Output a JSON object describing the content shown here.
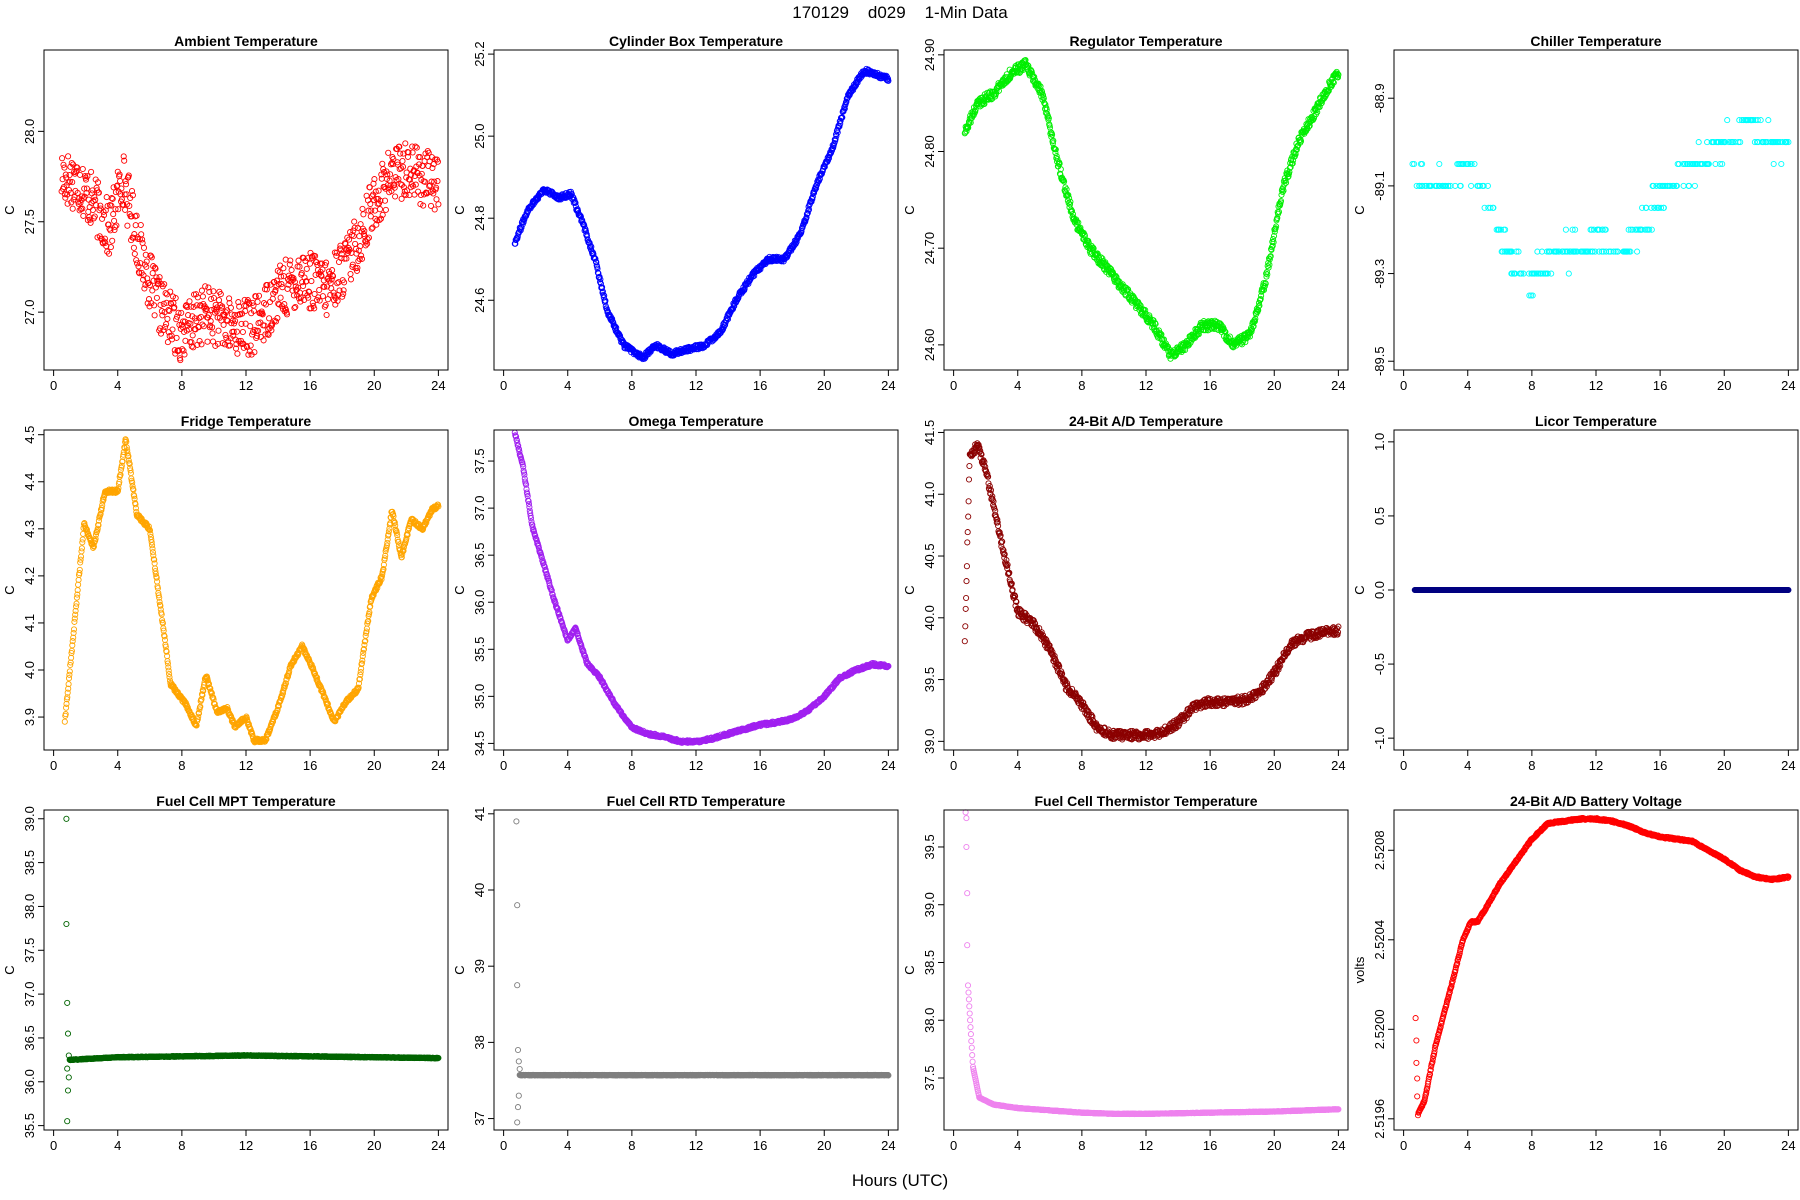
{
  "figure": {
    "title": "170129    d029    1-Min Data",
    "xlabel": "Hours (UTC)",
    "xticks": [
      0,
      4,
      8,
      12,
      16,
      20,
      24
    ]
  },
  "chart_data": [
    {
      "type": "scatter",
      "title": "Ambient Temperature",
      "ylabel": "C",
      "color": "#ff0000",
      "yticks": [
        "27.0",
        "27.5",
        "28.0"
      ],
      "ylim": [
        26.68,
        28.45
      ],
      "noise": 0.16,
      "trend": [
        [
          0.5,
          27.75
        ],
        [
          1.5,
          27.72
        ],
        [
          2.5,
          27.6
        ],
        [
          3.5,
          27.45
        ],
        [
          4.3,
          27.75
        ],
        [
          5.5,
          27.3
        ],
        [
          6.5,
          27.05
        ],
        [
          8,
          26.88
        ],
        [
          9.5,
          27.0
        ],
        [
          11,
          26.92
        ],
        [
          12.5,
          26.92
        ],
        [
          14,
          27.1
        ],
        [
          15.5,
          27.2
        ],
        [
          17,
          27.12
        ],
        [
          18.5,
          27.3
        ],
        [
          20,
          27.6
        ],
        [
          21,
          27.75
        ],
        [
          22,
          27.8
        ],
        [
          23,
          27.75
        ],
        [
          24,
          27.7
        ]
      ]
    },
    {
      "type": "scatter",
      "title": "Cylinder Box Temperature",
      "ylabel": "C",
      "color": "#0000ff",
      "yticks": [
        "24.6",
        "24.8",
        "25.0",
        "25.2"
      ],
      "ylim": [
        24.43,
        25.21
      ],
      "noise": 0.006,
      "trend": [
        [
          0.7,
          24.74
        ],
        [
          1.5,
          24.82
        ],
        [
          2.5,
          24.87
        ],
        [
          3.5,
          24.85
        ],
        [
          4.2,
          24.86
        ],
        [
          5,
          24.78
        ],
        [
          5.7,
          24.7
        ],
        [
          6.5,
          24.57
        ],
        [
          7.5,
          24.49
        ],
        [
          8.7,
          24.46
        ],
        [
          9.5,
          24.49
        ],
        [
          10.5,
          24.47
        ],
        [
          11.5,
          24.48
        ],
        [
          12.5,
          24.49
        ],
        [
          13.5,
          24.52
        ],
        [
          14.5,
          24.6
        ],
        [
          15.5,
          24.66
        ],
        [
          16.5,
          24.7
        ],
        [
          17.5,
          24.7
        ],
        [
          18.5,
          24.76
        ],
        [
          19.5,
          24.88
        ],
        [
          20.5,
          24.97
        ],
        [
          21.5,
          25.1
        ],
        [
          22.5,
          25.16
        ],
        [
          23.2,
          25.15
        ],
        [
          24,
          25.14
        ]
      ]
    },
    {
      "type": "scatter",
      "title": "Regulator Temperature",
      "ylabel": "C",
      "color": "#00ee00",
      "yticks": [
        "24.60",
        "24.70",
        "24.80",
        "24.90"
      ],
      "ylim": [
        24.574,
        24.905
      ],
      "noise": 0.005,
      "trend": [
        [
          0.7,
          24.82
        ],
        [
          1.5,
          24.85
        ],
        [
          2.5,
          24.86
        ],
        [
          3.5,
          24.88
        ],
        [
          4.5,
          24.89
        ],
        [
          5.5,
          24.86
        ],
        [
          6.5,
          24.79
        ],
        [
          7.5,
          24.73
        ],
        [
          8.5,
          24.7
        ],
        [
          9.5,
          24.68
        ],
        [
          10.5,
          24.66
        ],
        [
          11.5,
          24.64
        ],
        [
          12.5,
          24.62
        ],
        [
          13.5,
          24.59
        ],
        [
          14.5,
          24.6
        ],
        [
          15.5,
          24.62
        ],
        [
          16.5,
          24.62
        ],
        [
          17.5,
          24.6
        ],
        [
          18.5,
          24.61
        ],
        [
          19.5,
          24.67
        ],
        [
          20.5,
          24.76
        ],
        [
          21.5,
          24.81
        ],
        [
          22.5,
          24.84
        ],
        [
          23.5,
          24.87
        ],
        [
          24,
          24.88
        ]
      ]
    },
    {
      "type": "scatter",
      "title": "Chiller Temperature",
      "ylabel": "C",
      "color": "#00ffff",
      "yticks": [
        "-89.5",
        "-89.3",
        "-89.1",
        "-88.9"
      ],
      "ylim": [
        -89.52,
        -88.79
      ],
      "noise": 0.0,
      "trend": [
        [
          0.5,
          -89.08
        ],
        [
          3,
          -89.1
        ],
        [
          4.5,
          -89.05
        ],
        [
          5.5,
          -89.15
        ],
        [
          6.5,
          -89.25
        ],
        [
          8,
          -89.32
        ],
        [
          9.5,
          -89.25
        ],
        [
          11,
          -89.25
        ],
        [
          12.5,
          -89.22
        ],
        [
          14,
          -89.25
        ],
        [
          15.5,
          -89.15
        ],
        [
          17,
          -89.08
        ],
        [
          18.5,
          -89.05
        ],
        [
          20,
          -89.0
        ],
        [
          21.5,
          -88.95
        ],
        [
          23,
          -89.0
        ],
        [
          24,
          -89.0
        ]
      ]
    },
    {
      "type": "scatter",
      "title": "Fridge Temperature",
      "ylabel": "C",
      "color": "#ffa500",
      "yticks": [
        "3.9",
        "4.0",
        "4.1",
        "4.2",
        "4.3",
        "4.4",
        "4.5"
      ],
      "ylim": [
        3.83,
        4.51
      ],
      "noise": 0.004,
      "trend": [
        [
          0.7,
          3.89
        ],
        [
          1.3,
          4.1
        ],
        [
          1.9,
          4.31
        ],
        [
          2.5,
          4.26
        ],
        [
          3.2,
          4.38
        ],
        [
          4,
          4.38
        ],
        [
          4.5,
          4.49
        ],
        [
          5.2,
          4.33
        ],
        [
          6,
          4.3
        ],
        [
          6.8,
          4.1
        ],
        [
          7.3,
          3.97
        ],
        [
          8.2,
          3.93
        ],
        [
          8.9,
          3.88
        ],
        [
          9.5,
          3.99
        ],
        [
          10.2,
          3.91
        ],
        [
          10.8,
          3.92
        ],
        [
          11.3,
          3.88
        ],
        [
          12,
          3.9
        ],
        [
          12.5,
          3.85
        ],
        [
          13.2,
          3.85
        ],
        [
          14,
          3.92
        ],
        [
          14.8,
          4.01
        ],
        [
          15.5,
          4.05
        ],
        [
          16.2,
          4.0
        ],
        [
          16.8,
          3.95
        ],
        [
          17.5,
          3.89
        ],
        [
          18.2,
          3.93
        ],
        [
          19,
          3.96
        ],
        [
          19.8,
          4.15
        ],
        [
          20.5,
          4.2
        ],
        [
          21.1,
          4.34
        ],
        [
          21.7,
          4.24
        ],
        [
          22.3,
          4.32
        ],
        [
          23,
          4.3
        ],
        [
          23.6,
          4.34
        ],
        [
          24,
          4.35
        ]
      ]
    },
    {
      "type": "scatter",
      "title": "Omega Temperature",
      "ylabel": "C",
      "color": "#a020f0",
      "yticks": [
        "34.5",
        "35.0",
        "35.5",
        "36.0",
        "36.5",
        "37.0",
        "37.5"
      ],
      "ylim": [
        34.43,
        37.83
      ],
      "noise": 0.015,
      "trend": [
        [
          0.7,
          37.8
        ],
        [
          1.2,
          37.45
        ],
        [
          1.8,
          36.8
        ],
        [
          2.5,
          36.4
        ],
        [
          3.2,
          36.0
        ],
        [
          4,
          35.6
        ],
        [
          4.5,
          35.72
        ],
        [
          5.2,
          35.35
        ],
        [
          6,
          35.2
        ],
        [
          7,
          34.9
        ],
        [
          8,
          34.67
        ],
        [
          9,
          34.6
        ],
        [
          10,
          34.57
        ],
        [
          11,
          34.52
        ],
        [
          12,
          34.52
        ],
        [
          13,
          34.55
        ],
        [
          14,
          34.6
        ],
        [
          15,
          34.65
        ],
        [
          16,
          34.7
        ],
        [
          17,
          34.72
        ],
        [
          18,
          34.76
        ],
        [
          19,
          34.85
        ],
        [
          20,
          35.0
        ],
        [
          21,
          35.2
        ],
        [
          22,
          35.28
        ],
        [
          23,
          35.34
        ],
        [
          24,
          35.32
        ]
      ]
    },
    {
      "type": "scatter",
      "title": "24-Bit A/D Temperature",
      "ylabel": "C",
      "color": "#8b0000",
      "yticks": [
        "39.0",
        "39.5",
        "40.0",
        "40.5",
        "41.0",
        "41.5"
      ],
      "ylim": [
        38.93,
        41.52
      ],
      "noise": 0.035,
      "trend": [
        [
          0.7,
          39.8
        ],
        [
          1,
          41.3
        ],
        [
          1.5,
          41.4
        ],
        [
          2,
          41.2
        ],
        [
          3,
          40.6
        ],
        [
          4,
          40.05
        ],
        [
          5,
          39.95
        ],
        [
          6,
          39.75
        ],
        [
          7,
          39.45
        ],
        [
          8,
          39.3
        ],
        [
          9,
          39.1
        ],
        [
          10,
          39.05
        ],
        [
          11,
          39.05
        ],
        [
          12,
          39.05
        ],
        [
          13,
          39.07
        ],
        [
          14,
          39.15
        ],
        [
          15,
          39.28
        ],
        [
          16,
          39.32
        ],
        [
          17,
          39.32
        ],
        [
          18,
          39.33
        ],
        [
          19,
          39.38
        ],
        [
          20,
          39.55
        ],
        [
          21,
          39.78
        ],
        [
          22,
          39.85
        ],
        [
          23,
          39.88
        ],
        [
          24,
          39.9
        ]
      ]
    },
    {
      "type": "scatter",
      "title": "Licor Temperature",
      "ylabel": "C",
      "color": "#000080",
      "yticks": [
        "-1.0",
        "-0.5",
        "0.0",
        "0.5",
        "1.0"
      ],
      "ylim": [
        -1.08,
        1.08
      ],
      "noise": 0.0,
      "trend": [
        [
          0.7,
          0
        ],
        [
          24,
          0
        ]
      ]
    },
    {
      "type": "scatter",
      "title": "Fuel Cell MPT Temperature",
      "ylabel": "C",
      "color": "#006400",
      "yticks": [
        "35.5",
        "36.0",
        "36.5",
        "37.0",
        "37.5",
        "38.0",
        "38.5",
        "39.0"
      ],
      "ylim": [
        35.45,
        39.1
      ],
      "noise": 0.004,
      "outliers": [
        [
          0.8,
          39.0
        ],
        [
          0.8,
          37.8
        ],
        [
          0.85,
          36.9
        ],
        [
          0.9,
          36.55
        ],
        [
          0.95,
          36.3
        ],
        [
          0.85,
          36.15
        ],
        [
          0.95,
          36.05
        ],
        [
          0.9,
          35.9
        ],
        [
          0.85,
          35.55
        ]
      ],
      "trend": [
        [
          1,
          36.25
        ],
        [
          4,
          36.28
        ],
        [
          8,
          36.29
        ],
        [
          12,
          36.3
        ],
        [
          16,
          36.29
        ],
        [
          20,
          36.28
        ],
        [
          24,
          36.27
        ]
      ]
    },
    {
      "type": "scatter",
      "title": "Fuel Cell RTD Temperature",
      "ylabel": "C",
      "color": "#7f7f7f",
      "yticks": [
        "37",
        "38",
        "39",
        "40",
        "41"
      ],
      "ylim": [
        36.85,
        41.05
      ],
      "noise": 0.003,
      "outliers": [
        [
          0.8,
          40.9
        ],
        [
          0.85,
          39.8
        ],
        [
          0.85,
          38.75
        ],
        [
          0.9,
          37.9
        ],
        [
          0.95,
          37.75
        ],
        [
          1,
          37.65
        ],
        [
          0.95,
          37.3
        ],
        [
          0.9,
          37.15
        ],
        [
          0.85,
          36.95
        ]
      ],
      "trend": [
        [
          1,
          37.57
        ],
        [
          24,
          37.57
        ]
      ]
    },
    {
      "type": "scatter",
      "title": "Fuel Cell Thermistor Temperature",
      "ylabel": "C",
      "color": "#ee82ee",
      "yticks": [
        "37.5",
        "38.0",
        "38.5",
        "39.0",
        "39.5"
      ],
      "ylim": [
        37.05,
        39.82
      ],
      "noise": 0.002,
      "outliers": [
        [
          0.75,
          39.8
        ],
        [
          0.8,
          39.75
        ],
        [
          0.8,
          39.5
        ],
        [
          0.85,
          39.1
        ],
        [
          0.85,
          38.65
        ]
      ],
      "trend": [
        [
          0.9,
          38.3
        ],
        [
          1.2,
          37.6
        ],
        [
          1.6,
          37.33
        ],
        [
          2.5,
          37.27
        ],
        [
          4,
          37.24
        ],
        [
          6,
          37.22
        ],
        [
          8,
          37.2
        ],
        [
          10,
          37.19
        ],
        [
          12,
          37.19
        ],
        [
          16,
          37.2
        ],
        [
          20,
          37.21
        ],
        [
          24,
          37.23
        ]
      ]
    },
    {
      "type": "scatter",
      "title": "24-Bit A/D Battery Voltage",
      "ylabel": "volts",
      "color": "#ff0000",
      "yticks": [
        "2.5196",
        "2.5200",
        "2.5204",
        "2.5208"
      ],
      "ylim": [
        2.51955,
        2.52098
      ],
      "noise": 4e-06,
      "outliers": [
        [
          0.75,
          2.52005
        ],
        [
          0.8,
          2.51995
        ],
        [
          0.8,
          2.51985
        ],
        [
          0.85,
          2.51978
        ],
        [
          0.85,
          2.5197
        ]
      ],
      "trend": [
        [
          0.9,
          2.51962
        ],
        [
          1.3,
          2.51968
        ],
        [
          2,
          2.51993
        ],
        [
          3,
          2.5202
        ],
        [
          3.7,
          2.5204
        ],
        [
          4.2,
          2.52048
        ],
        [
          4.6,
          2.52048
        ],
        [
          5.2,
          2.52055
        ],
        [
          6,
          2.52065
        ],
        [
          7,
          2.52075
        ],
        [
          8,
          2.52085
        ],
        [
          9,
          2.52092
        ],
        [
          10,
          2.52093
        ],
        [
          11,
          2.52094
        ],
        [
          12,
          2.52094
        ],
        [
          13,
          2.52093
        ],
        [
          14,
          2.52091
        ],
        [
          15,
          2.52088
        ],
        [
          16,
          2.52086
        ],
        [
          17,
          2.52085
        ],
        [
          18,
          2.52084
        ],
        [
          19,
          2.5208
        ],
        [
          20,
          2.52076
        ],
        [
          21,
          2.52071
        ],
        [
          22,
          2.52068
        ],
        [
          23,
          2.52067
        ],
        [
          24,
          2.52068
        ]
      ]
    }
  ]
}
